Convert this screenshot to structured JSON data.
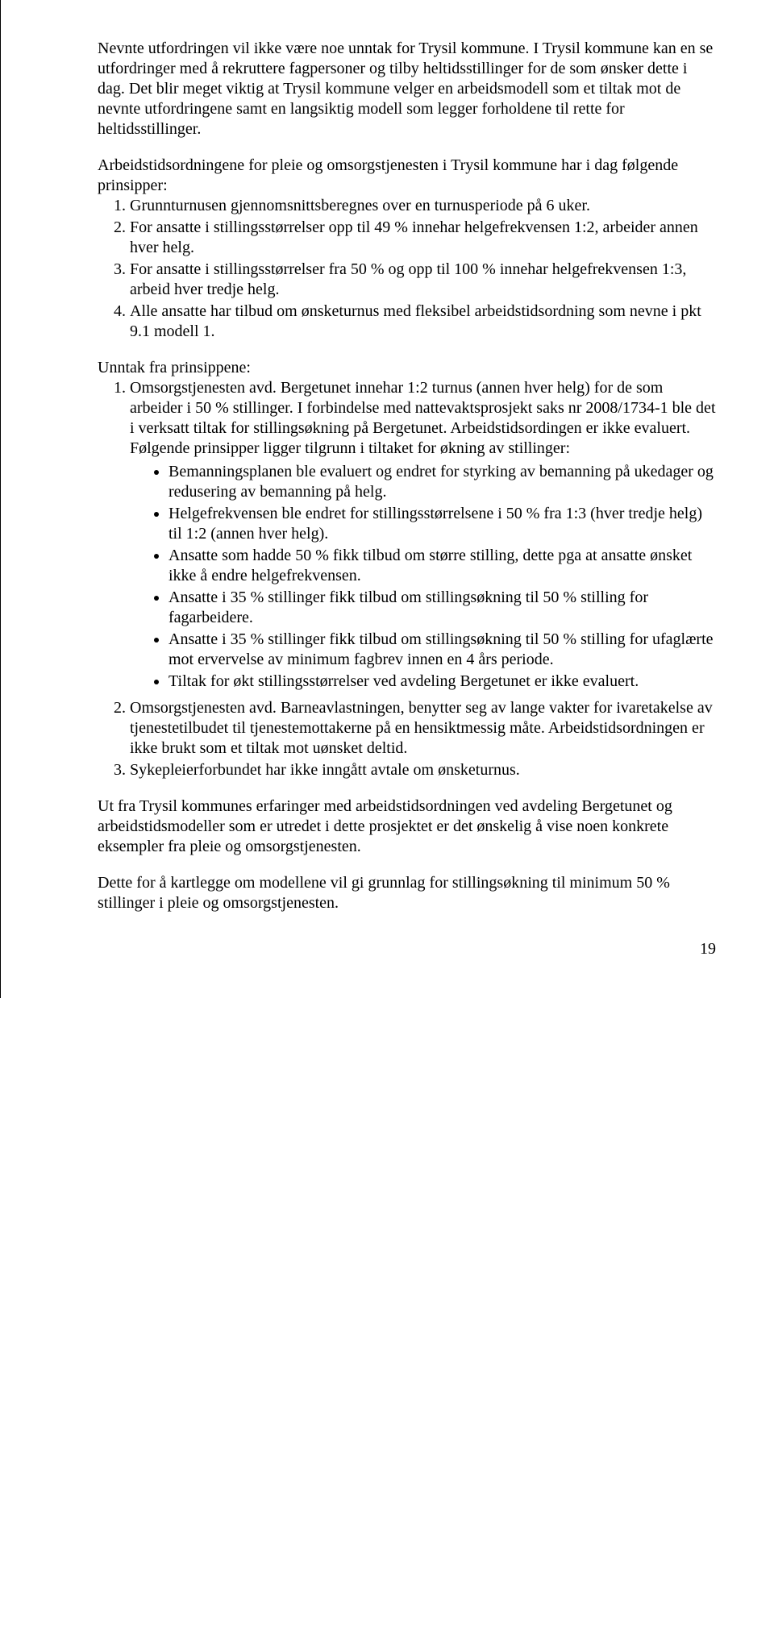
{
  "para1": "Nevnte utfordringen vil ikke være noe unntak for Trysil kommune. I Trysil kommune kan en se utfordringer med å rekruttere fagpersoner og tilby heltidsstillinger for de som ønsker dette i dag. Det blir meget viktig at Trysil kommune velger en arbeidsmodell som et tiltak mot de nevnte utfordringene samt en langsiktig modell som legger forholdene til rette for heltidsstillinger.",
  "para2": "Arbeidstidsordningene for pleie og omsorgstjenesten i Trysil kommune har i dag følgende prinsipper:",
  "list1": [
    "Grunnturnusen gjennomsnittsberegnes over en turnusperiode på 6 uker.",
    "For ansatte i stillingsstørrelser opp til 49 % innehar helgefrekvensen 1:2, arbeider annen hver helg.",
    "For ansatte i stillingsstørrelser fra 50 % og opp til 100 % innehar helgefrekvensen 1:3, arbeid hver tredje helg.",
    "Alle ansatte har tilbud om ønsketurnus med fleksibel arbeidstidsordning som nevne i pkt 9.1 modell 1."
  ],
  "unntak_label": "Unntak fra prinsippene:",
  "unntak1_text": "Omsorgstjenesten avd. Bergetunet innehar 1:2 turnus (annen hver helg) for de som arbeider i 50 % stillinger. I forbindelse med nattevaktsprosjekt saks nr 2008/1734-1 ble det i verksatt tiltak for stillingsøkning på Bergetunet. Arbeidstidsordingen er ikke evaluert. Følgende prinsipper ligger tilgrunn i tiltaket for økning av stillinger:",
  "unntak1_bullets": [
    "Bemanningsplanen ble evaluert og endret for styrking av bemanning på ukedager og redusering av bemanning på helg.",
    "Helgefrekvensen ble endret for stillingsstørrelsene i 50 % fra 1:3 (hver tredje helg) til 1:2 (annen hver helg).",
    "Ansatte som hadde 50 % fikk tilbud om større stilling, dette pga at ansatte ønsket ikke å endre helgefrekvensen.",
    "Ansatte i 35 % stillinger fikk tilbud om stillingsøkning til 50 % stilling for fagarbeidere.",
    "Ansatte i 35 % stillinger fikk tilbud om stillingsøkning til 50 % stilling for ufaglærte mot ervervelse av minimum fagbrev innen en 4 års periode.",
    "Tiltak for økt stillingsstørrelser ved avdeling Bergetunet er ikke evaluert."
  ],
  "unntak2": "Omsorgstjenesten avd. Barneavlastningen, benytter seg av lange vakter for ivaretakelse av tjenestetilbudet til tjenestemottakerne på en hensiktmessig måte. Arbeidstidsordningen er ikke brukt som et tiltak mot uønsket deltid.",
  "unntak3": "Sykepleierforbundet har ikke inngått avtale om ønsketurnus.",
  "para3": "Ut fra Trysil kommunes erfaringer med arbeidstidsordningen ved avdeling Bergetunet og arbeidstidsmodeller som er utredet i dette prosjektet er det ønskelig å vise noen konkrete eksempler fra pleie og omsorgstjenesten.",
  "para4": "Dette for å kartlegge om modellene vil gi grunnlag for stillingsøkning til minimum 50 % stillinger i pleie og omsorgstjenesten.",
  "pagenum": "19"
}
